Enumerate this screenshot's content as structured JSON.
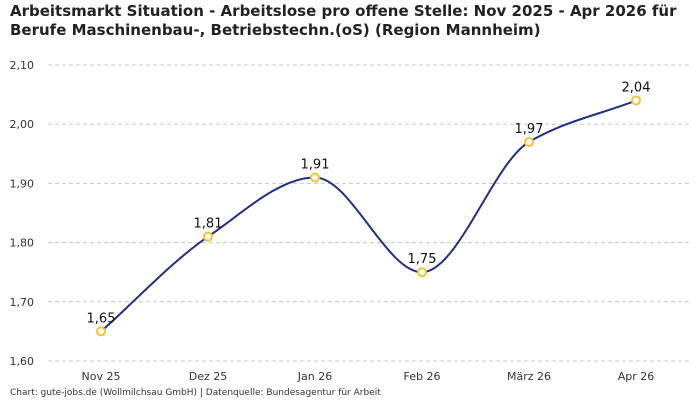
{
  "chart_data": {
    "type": "line",
    "title": "Arbeitsmarkt Situation - Arbeitslose pro offene Stelle: Nov 2025 - Apr 2026 für Berufe Maschinenbau-, Betriebstechn.(oS) (Region Mannheim)",
    "categories": [
      "Nov 25",
      "Dez 25",
      "Jan 26",
      "Feb 26",
      "März 26",
      "Apr 26"
    ],
    "series": [
      {
        "values": [
          1.65,
          1.81,
          1.91,
          1.75,
          1.97,
          2.04
        ],
        "value_labels": [
          "1,65",
          "1,81",
          "1,91",
          "1,75",
          "1,97",
          "2,04"
        ]
      }
    ],
    "ylim": [
      1.6,
      2.1
    ],
    "yticks": [
      1.6,
      1.7,
      1.8,
      1.9,
      2.0,
      2.1
    ],
    "ytick_labels": [
      "1,60",
      "1,70",
      "1,80",
      "1,90",
      "2,00",
      "2,10"
    ],
    "xlabel": "",
    "ylabel": "",
    "grid": "horizontal dashed",
    "line_style": "smooth",
    "colors": {
      "line": "#1f2f8a",
      "marker_fill": "#ffffff",
      "marker_stroke": "#f2c530",
      "grid": "#c8c8c8"
    }
  },
  "footer": {
    "source": "Chart: gute-jobs.de (Wollmilchsau GmbH) | Datenquelle: Bundesagentur für Arbeit"
  }
}
